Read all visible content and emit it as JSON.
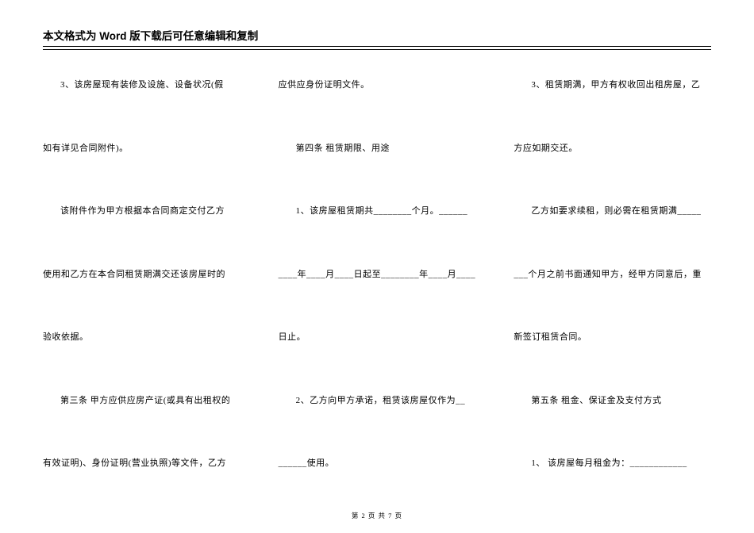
{
  "header": "本文格式为 Word 版下载后可任意编辑和复制",
  "footer": "第 2 页 共 7 页",
  "col1": {
    "l1": "3、该房屋现有装修及设施、设备状况(假",
    "l2": "如有详见合同附件)。",
    "l3": "该附件作为甲方根据本合同商定交付乙方",
    "l4": "使用和乙方在本合同租赁期满交还该房屋时的",
    "l5": "验收依据。",
    "l6": "第三条 甲方应供应房产证(或具有出租权的",
    "l7": "有效证明)、身份证明(营业执照)等文件，乙方"
  },
  "col2": {
    "l1": "应供应身份证明文件。",
    "l2": "第四条 租赁期限、用途",
    "l3": "1、该房屋租赁期共________个月。______",
    "l4": "____年____月____日起至________年____月____",
    "l5": "日止。",
    "l6": "2、乙方向甲方承诺，租赁该房屋仅作为__",
    "l7": "______使用。"
  },
  "col3": {
    "l1": "3、租赁期满，甲方有权收回出租房屋，乙",
    "l2": "方应如期交还。",
    "l3": "乙方如要求续租，则必需在租赁期满_____",
    "l4": "___个月之前书面通知甲方，经甲方同意后，重",
    "l5": "新签订租赁合同。",
    "l6": "第五条 租金、保证金及支付方式",
    "l7": "1、 该房屋每月租金为：____________"
  }
}
